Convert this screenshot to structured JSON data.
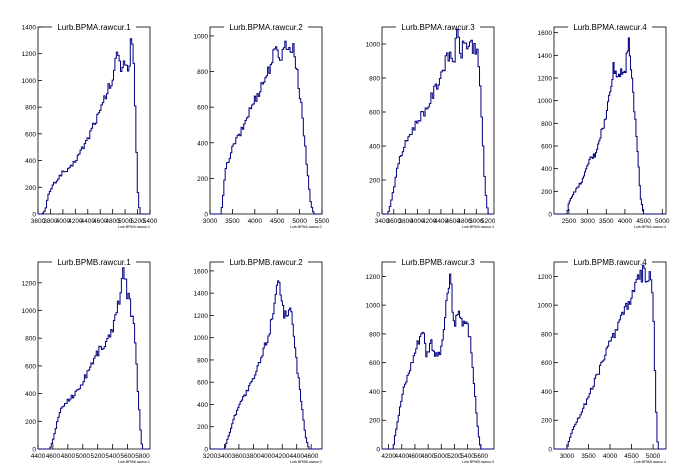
{
  "colors": {
    "line": "#000080",
    "axis": "#000000",
    "background": "#ffffff"
  },
  "chart_data": [
    {
      "type": "histogram",
      "title": "Lurb.BPMA.rawcur.1",
      "xlabel": "Lurb.BPMA.rawcur.1",
      "xlim": [
        3600,
        5400
      ],
      "ylim": [
        0,
        1400
      ],
      "xticks": [
        3600,
        3800,
        4000,
        4200,
        4400,
        4600,
        4800,
        5000,
        5200,
        5400
      ],
      "yticks": [
        0,
        200,
        400,
        600,
        800,
        1000,
        1200,
        1400
      ],
      "profile": [
        [
          3670,
          0
        ],
        [
          3720,
          30
        ],
        [
          3760,
          130
        ],
        [
          3830,
          210
        ],
        [
          3900,
          250
        ],
        [
          3990,
          310
        ],
        [
          4100,
          330
        ],
        [
          4200,
          400
        ],
        [
          4300,
          480
        ],
        [
          4400,
          560
        ],
        [
          4500,
          680
        ],
        [
          4600,
          760
        ],
        [
          4700,
          900
        ],
        [
          4800,
          1000
        ],
        [
          4880,
          1220
        ],
        [
          4940,
          1100
        ],
        [
          5000,
          1160
        ],
        [
          5060,
          1050
        ],
        [
          5100,
          1340
        ],
        [
          5140,
          1100
        ],
        [
          5180,
          500
        ],
        [
          5210,
          120
        ],
        [
          5240,
          0
        ]
      ]
    },
    {
      "type": "histogram",
      "title": "Lurb.BPMA.rawcur.2",
      "xlabel": "Lurb.BPMA.rawcur.2",
      "xlim": [
        3000,
        5500
      ],
      "ylim": [
        0,
        1050
      ],
      "xticks": [
        3000,
        3500,
        4000,
        4500,
        5000,
        5500
      ],
      "yticks": [
        0,
        200,
        400,
        600,
        800,
        1000
      ],
      "profile": [
        [
          3250,
          0
        ],
        [
          3300,
          120
        ],
        [
          3350,
          250
        ],
        [
          3450,
          330
        ],
        [
          3550,
          400
        ],
        [
          3700,
          460
        ],
        [
          3850,
          560
        ],
        [
          4000,
          640
        ],
        [
          4150,
          720
        ],
        [
          4300,
          800
        ],
        [
          4400,
          880
        ],
        [
          4500,
          920
        ],
        [
          4600,
          880
        ],
        [
          4700,
          980
        ],
        [
          4780,
          900
        ],
        [
          4860,
          960
        ],
        [
          4950,
          780
        ],
        [
          5050,
          600
        ],
        [
          5150,
          300
        ],
        [
          5250,
          60
        ],
        [
          5320,
          0
        ]
      ]
    },
    {
      "type": "histogram",
      "title": "Lurb.BPMA.rawcur.3",
      "xlabel": "Lurb.BPMA.rawcur.3",
      "xlim": [
        3400,
        5300
      ],
      "ylim": [
        0,
        1100
      ],
      "xticks": [
        3400,
        3600,
        3800,
        4000,
        4200,
        4400,
        4600,
        4800,
        5000,
        5200
      ],
      "yticks": [
        0,
        200,
        400,
        600,
        800,
        1000
      ],
      "profile": [
        [
          3500,
          0
        ],
        [
          3540,
          50
        ],
        [
          3600,
          150
        ],
        [
          3680,
          300
        ],
        [
          3760,
          380
        ],
        [
          3860,
          460
        ],
        [
          3960,
          520
        ],
        [
          4060,
          580
        ],
        [
          4160,
          620
        ],
        [
          4260,
          700
        ],
        [
          4360,
          780
        ],
        [
          4460,
          880
        ],
        [
          4560,
          940
        ],
        [
          4620,
          900
        ],
        [
          4680,
          1060
        ],
        [
          4740,
          940
        ],
        [
          4800,
          1000
        ],
        [
          4900,
          1000
        ],
        [
          4980,
          980
        ],
        [
          5040,
          900
        ],
        [
          5100,
          500
        ],
        [
          5150,
          150
        ],
        [
          5200,
          0
        ]
      ]
    },
    {
      "type": "histogram",
      "title": "Lurb.BPMA.rawcur.4",
      "xlabel": "Lurb.BPMA.rawcur.4",
      "xlim": [
        2100,
        5100
      ],
      "ylim": [
        0,
        1650
      ],
      "xticks": [
        2500,
        3000,
        3500,
        4000,
        4500,
        5000
      ],
      "yticks": [
        0,
        200,
        400,
        600,
        800,
        1000,
        1200,
        1400,
        1600
      ],
      "profile": [
        [
          2450,
          0
        ],
        [
          2500,
          100
        ],
        [
          2600,
          170
        ],
        [
          2750,
          240
        ],
        [
          2900,
          320
        ],
        [
          3050,
          480
        ],
        [
          3200,
          520
        ],
        [
          3350,
          700
        ],
        [
          3500,
          850
        ],
        [
          3600,
          1100
        ],
        [
          3700,
          1300
        ],
        [
          3800,
          1200
        ],
        [
          3900,
          1280
        ],
        [
          4000,
          1250
        ],
        [
          4100,
          1580
        ],
        [
          4180,
          1200
        ],
        [
          4260,
          900
        ],
        [
          4350,
          500
        ],
        [
          4420,
          150
        ],
        [
          4500,
          0
        ]
      ]
    },
    {
      "type": "histogram",
      "title": "Lurb.BPMB.rawcur.1",
      "xlabel": "Lurb.BPMB.rawcur.1",
      "xlim": [
        4400,
        5900
      ],
      "ylim": [
        0,
        1350
      ],
      "xticks": [
        4400,
        4600,
        4800,
        5000,
        5200,
        5400,
        5600,
        5800
      ],
      "yticks": [
        0,
        200,
        400,
        600,
        800,
        1000,
        1200
      ],
      "profile": [
        [
          4560,
          0
        ],
        [
          4600,
          60
        ],
        [
          4660,
          200
        ],
        [
          4720,
          300
        ],
        [
          4800,
          350
        ],
        [
          4900,
          400
        ],
        [
          5000,
          480
        ],
        [
          5100,
          600
        ],
        [
          5200,
          700
        ],
        [
          5300,
          760
        ],
        [
          5380,
          820
        ],
        [
          5440,
          1000
        ],
        [
          5500,
          1100
        ],
        [
          5540,
          1270
        ],
        [
          5600,
          1120
        ],
        [
          5650,
          1000
        ],
        [
          5700,
          820
        ],
        [
          5740,
          400
        ],
        [
          5780,
          80
        ],
        [
          5800,
          0
        ]
      ]
    },
    {
      "type": "histogram",
      "title": "Lurb.BPMB.rawcur.2",
      "xlabel": "Lurb.BPMB.rawcur.2",
      "xlim": [
        3200,
        4750
      ],
      "ylim": [
        0,
        1680
      ],
      "xticks": [
        3200,
        3400,
        3600,
        3800,
        4000,
        4200,
        4400,
        4600
      ],
      "yticks": [
        0,
        200,
        400,
        600,
        800,
        1000,
        1200,
        1400,
        1600
      ],
      "profile": [
        [
          3400,
          0
        ],
        [
          3450,
          100
        ],
        [
          3520,
          250
        ],
        [
          3600,
          400
        ],
        [
          3700,
          500
        ],
        [
          3800,
          620
        ],
        [
          3880,
          760
        ],
        [
          3950,
          900
        ],
        [
          4020,
          1050
        ],
        [
          4080,
          1250
        ],
        [
          4140,
          1580
        ],
        [
          4200,
          1300
        ],
        [
          4260,
          1150
        ],
        [
          4320,
          1250
        ],
        [
          4380,
          880
        ],
        [
          4450,
          500
        ],
        [
          4520,
          120
        ],
        [
          4570,
          0
        ]
      ]
    },
    {
      "type": "histogram",
      "title": "Lurb.BPMB.rawcur.3",
      "xlabel": "Lurb.BPMB.rawcur.3",
      "xlim": [
        4100,
        5800
      ],
      "ylim": [
        0,
        1300
      ],
      "xticks": [
        4200,
        4400,
        4600,
        4800,
        5000,
        5200,
        5400,
        5600
      ],
      "yticks": [
        0,
        200,
        400,
        600,
        800,
        1000,
        1200
      ],
      "profile": [
        [
          4270,
          0
        ],
        [
          4300,
          100
        ],
        [
          4360,
          250
        ],
        [
          4420,
          400
        ],
        [
          4500,
          520
        ],
        [
          4580,
          640
        ],
        [
          4660,
          760
        ],
        [
          4720,
          840
        ],
        [
          4780,
          640
        ],
        [
          4840,
          760
        ],
        [
          4920,
          640
        ],
        [
          5000,
          680
        ],
        [
          5080,
          1000
        ],
        [
          5140,
          1220
        ],
        [
          5200,
          800
        ],
        [
          5260,
          1000
        ],
        [
          5320,
          840
        ],
        [
          5380,
          900
        ],
        [
          5440,
          760
        ],
        [
          5500,
          440
        ],
        [
          5560,
          120
        ],
        [
          5600,
          0
        ]
      ]
    },
    {
      "type": "histogram",
      "title": "Lurb.BPMB.rawcur.4",
      "xlabel": "Lurb.BPMB.rawcur.4",
      "xlim": [
        2700,
        5300
      ],
      "ylim": [
        0,
        1300
      ],
      "xticks": [
        3000,
        3500,
        4000,
        4500,
        5000
      ],
      "yticks": [
        0,
        200,
        400,
        600,
        800,
        1000,
        1200
      ],
      "profile": [
        [
          3000,
          0
        ],
        [
          3050,
          60
        ],
        [
          3150,
          150
        ],
        [
          3300,
          230
        ],
        [
          3450,
          330
        ],
        [
          3600,
          430
        ],
        [
          3750,
          550
        ],
        [
          3900,
          660
        ],
        [
          4050,
          770
        ],
        [
          4200,
          880
        ],
        [
          4350,
          980
        ],
        [
          4500,
          1050
        ],
        [
          4620,
          1150
        ],
        [
          4720,
          1200
        ],
        [
          4800,
          1240
        ],
        [
          4860,
          1150
        ],
        [
          4920,
          1200
        ],
        [
          5000,
          1050
        ],
        [
          5050,
          500
        ],
        [
          5090,
          100
        ],
        [
          5120,
          0
        ]
      ]
    }
  ]
}
